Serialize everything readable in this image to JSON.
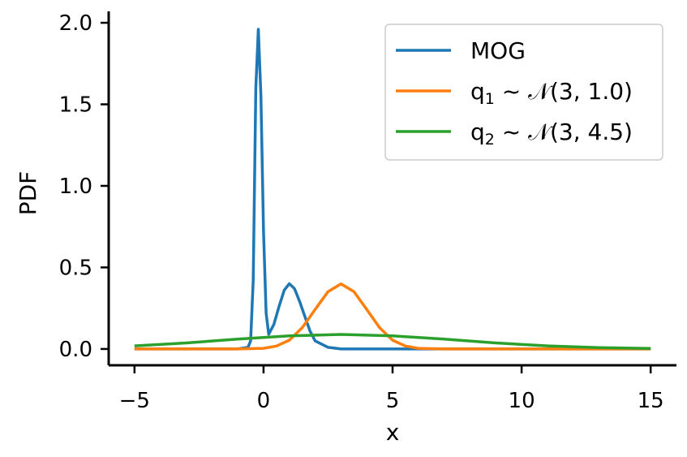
{
  "chart_data": {
    "type": "line",
    "xlabel": "x",
    "ylabel": "PDF",
    "xlim": [
      -6,
      16
    ],
    "ylim": [
      -0.1,
      2.07
    ],
    "xticks": [
      -5,
      0,
      5,
      10,
      15
    ],
    "xtick_labels": [
      "−5",
      "0",
      "5",
      "10",
      "15"
    ],
    "yticks": [
      0.0,
      0.5,
      1.0,
      1.5,
      2.0
    ],
    "ytick_labels": [
      "0.0",
      "0.5",
      "1.0",
      "1.5",
      "2.0"
    ],
    "grid": false,
    "legend_position": "top-right",
    "series": [
      {
        "name": "MOG",
        "color": "#1f77b4",
        "legend_parts": [
          {
            "text": "MOG"
          }
        ],
        "x": [
          -5,
          -1.0,
          -0.6,
          -0.5,
          -0.4,
          -0.3,
          -0.2,
          -0.1,
          0.0,
          0.1,
          0.2,
          0.4,
          0.6,
          0.8,
          1.0,
          1.2,
          1.4,
          1.6,
          1.8,
          2.0,
          2.5,
          3.0,
          4.0,
          6.0,
          15
        ],
        "y": [
          0.0,
          0.0,
          0.01,
          0.05,
          0.42,
          1.6,
          1.96,
          1.55,
          0.72,
          0.22,
          0.09,
          0.15,
          0.26,
          0.36,
          0.4,
          0.37,
          0.29,
          0.2,
          0.11,
          0.05,
          0.01,
          0.0,
          0.0,
          0.0,
          0.0
        ]
      },
      {
        "name": "q1 ~ N(3, 1.0)",
        "color": "#ff7f0e",
        "legend_parts": [
          {
            "text": "q"
          },
          {
            "text": "1",
            "sub": true
          },
          {
            "text": " ~ 𝒩(3, 1.0)"
          }
        ],
        "x": [
          -5,
          -1.0,
          0.0,
          0.5,
          1.0,
          1.5,
          2.0,
          2.5,
          3.0,
          3.5,
          4.0,
          4.5,
          5.0,
          5.5,
          6.0,
          7.0,
          15
        ],
        "y": [
          0.0,
          0.0,
          0.004,
          0.018,
          0.054,
          0.13,
          0.242,
          0.352,
          0.399,
          0.352,
          0.242,
          0.13,
          0.054,
          0.018,
          0.004,
          0.0,
          0.0
        ]
      },
      {
        "name": "q2 ~ N(3, 4.5)",
        "color": "#2ca02c",
        "legend_parts": [
          {
            "text": "q"
          },
          {
            "text": "2",
            "sub": true
          },
          {
            "text": " ~ 𝒩(3, 4.5)"
          }
        ],
        "x": [
          -5,
          -3,
          -1,
          1,
          3,
          5,
          7,
          9,
          11,
          13,
          15
        ],
        "y": [
          0.019,
          0.037,
          0.061,
          0.08,
          0.089,
          0.08,
          0.061,
          0.037,
          0.019,
          0.008,
          0.003
        ]
      }
    ]
  }
}
